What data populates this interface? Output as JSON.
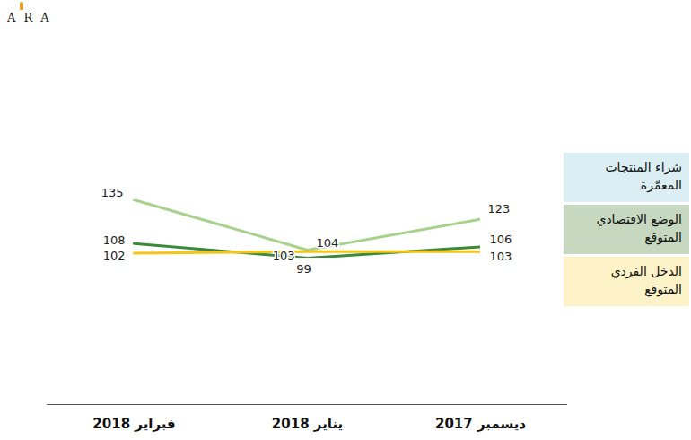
{
  "chart_data": {
    "type": "line",
    "logo": "ARA",
    "categories": [
      "فبراير 2018",
      "يناير 2018",
      "ديسمبر 2017"
    ],
    "series": [
      {
        "name": "شراء المنتجات المعمّرة",
        "color": "#a9d18e",
        "values": [
          135,
          104,
          123
        ]
      },
      {
        "name": "الوضع الاقتصادي المتوقع",
        "color": "#3a8a3a",
        "values": [
          108,
          99,
          106
        ]
      },
      {
        "name": "الدخل الفردي المتوقع",
        "color": "#f5c518",
        "values": [
          102,
          103,
          103
        ]
      }
    ],
    "data_labels": true,
    "tick_labels": "x",
    "legend": "right"
  }
}
